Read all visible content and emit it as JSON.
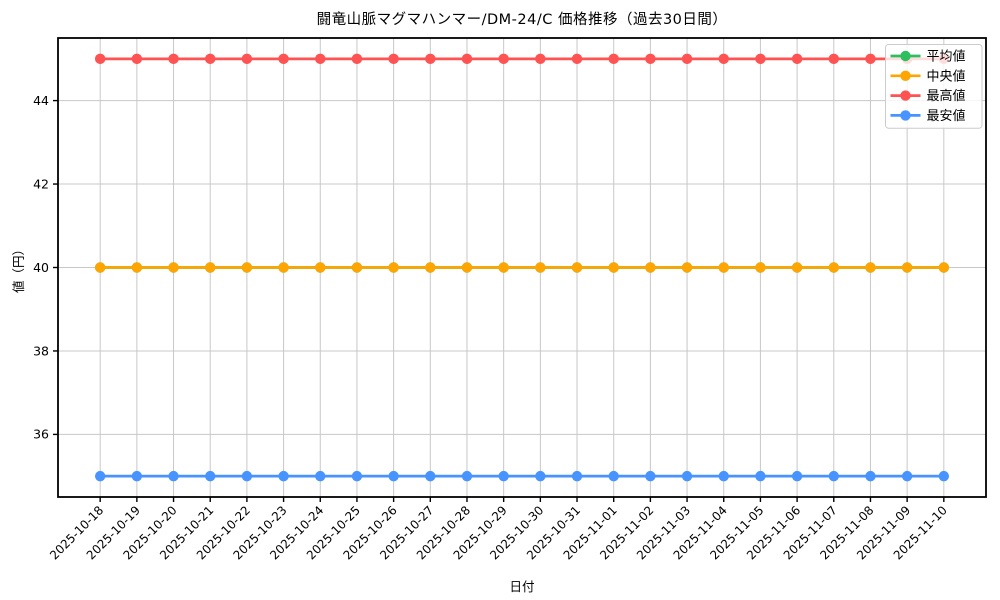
{
  "chart_data": {
    "type": "line",
    "title": "闘竜山脈マグマハンマー/DM-24/C 価格推移（過去30日間）",
    "xlabel": "日付",
    "ylabel": "値（円）",
    "x": [
      "2025-10-18",
      "2025-10-19",
      "2025-10-20",
      "2025-10-21",
      "2025-10-22",
      "2025-10-23",
      "2025-10-24",
      "2025-10-25",
      "2025-10-26",
      "2025-10-27",
      "2025-10-28",
      "2025-10-29",
      "2025-10-30",
      "2025-10-31",
      "2025-11-01",
      "2025-11-02",
      "2025-11-03",
      "2025-11-04",
      "2025-11-05",
      "2025-11-06",
      "2025-11-07",
      "2025-11-08",
      "2025-11-09",
      "2025-11-10"
    ],
    "series": [
      {
        "name": "平均値",
        "color": "#2dbe60",
        "values": [
          40,
          40,
          40,
          40,
          40,
          40,
          40,
          40,
          40,
          40,
          40,
          40,
          40,
          40,
          40,
          40,
          40,
          40,
          40,
          40,
          40,
          40,
          40,
          40
        ]
      },
      {
        "name": "中央値",
        "color": "#ffa502",
        "values": [
          40,
          40,
          40,
          40,
          40,
          40,
          40,
          40,
          40,
          40,
          40,
          40,
          40,
          40,
          40,
          40,
          40,
          40,
          40,
          40,
          40,
          40,
          40,
          40
        ]
      },
      {
        "name": "最高値",
        "color": "#ff5252",
        "values": [
          45,
          45,
          45,
          45,
          45,
          45,
          45,
          45,
          45,
          45,
          45,
          45,
          45,
          45,
          45,
          45,
          45,
          45,
          45,
          45,
          45,
          45,
          45,
          45
        ]
      },
      {
        "name": "最安値",
        "color": "#4793ff",
        "values": [
          35,
          35,
          35,
          35,
          35,
          35,
          35,
          35,
          35,
          35,
          35,
          35,
          35,
          35,
          35,
          35,
          35,
          35,
          35,
          35,
          35,
          35,
          35,
          35
        ]
      }
    ],
    "yticks": [
      36,
      38,
      40,
      42,
      44
    ],
    "ylim": [
      34.5,
      45.5
    ],
    "grid": true,
    "grid_color": "#c8c8c8",
    "axis_color": "#000000",
    "legend_position": "upper right",
    "legend_labels": [
      "平均値",
      "中央値",
      "最高値",
      "最安値"
    ]
  }
}
